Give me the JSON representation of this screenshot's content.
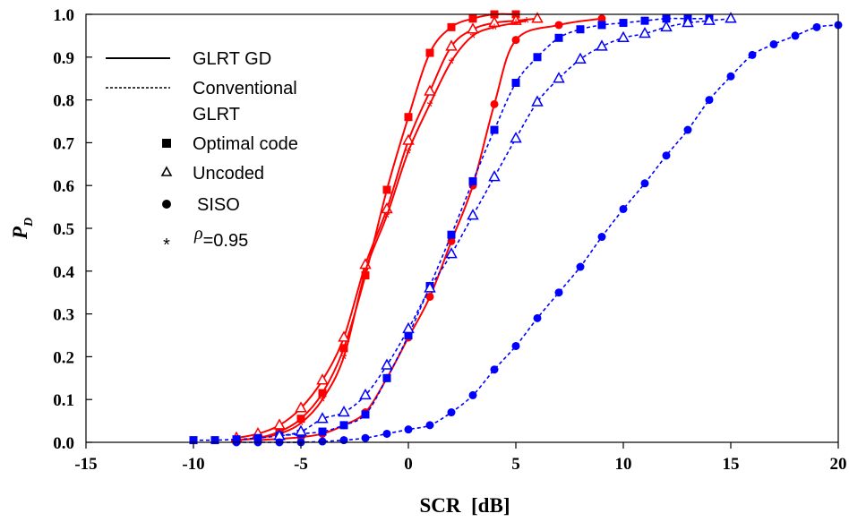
{
  "chart_data": {
    "type": "line",
    "xlabel": "SCR  [dB]",
    "ylabel": "P",
    "ylabel_sub": "D",
    "xlim": [
      -15,
      20
    ],
    "ylim": [
      0,
      1
    ],
    "x_ticks": [
      "-15",
      "-10",
      "-5",
      "0",
      "5",
      "10",
      "15",
      "20"
    ],
    "y_ticks": [
      "0.0",
      "0.1",
      "0.2",
      "0.3",
      "0.4",
      "0.5",
      "0.6",
      "0.7",
      "0.8",
      "0.9",
      "1.0"
    ],
    "grid": false,
    "legend_position": "top-left",
    "legend": {
      "line_items": [
        {
          "label": "GLRT GD",
          "style": "solid"
        },
        {
          "label": "Conventional",
          "style": "dashed"
        },
        {
          "label": "GLRT",
          "style": "none"
        }
      ],
      "marker_items": [
        {
          "label": "Optimal code",
          "marker": "square"
        },
        {
          "label": "Uncoded",
          "marker": "triangle"
        },
        {
          "label": "SISO",
          "marker": "circle"
        },
        {
          "label": "=0.95",
          "marker": "star",
          "symbol": "ρ"
        }
      ]
    },
    "colors": {
      "glrt_gd": "#ff0000",
      "conventional": "#0000ff"
    },
    "series": [
      {
        "name": "GLRT GD, Optimal code",
        "color": "#ff0000",
        "dash": false,
        "marker": "square",
        "x": [
          -8,
          -7,
          -6,
          -5,
          -4,
          -3,
          -2,
          -1,
          0,
          1,
          2,
          3,
          4,
          5
        ],
        "y": [
          0.005,
          0.01,
          0.025,
          0.055,
          0.115,
          0.22,
          0.39,
          0.59,
          0.76,
          0.91,
          0.97,
          0.99,
          1.0,
          1.0
        ]
      },
      {
        "name": "GLRT GD, Uncoded",
        "color": "#ff0000",
        "dash": false,
        "marker": "triangle",
        "x": [
          -8,
          -7,
          -6,
          -5,
          -4,
          -3,
          -2,
          -1,
          0,
          1,
          2,
          3,
          4,
          5,
          6
        ],
        "y": [
          0.01,
          0.02,
          0.04,
          0.08,
          0.145,
          0.245,
          0.415,
          0.545,
          0.705,
          0.82,
          0.925,
          0.965,
          0.98,
          0.985,
          0.99
        ]
      },
      {
        "name": "GLRT GD, SISO",
        "color": "#ff0000",
        "dash": false,
        "marker": "circle",
        "x": [
          -7,
          -6,
          -5,
          -4,
          -3,
          -2,
          -1,
          0,
          1,
          2,
          3,
          4,
          5,
          7,
          9
        ],
        "y": [
          0.005,
          0.008,
          0.012,
          0.02,
          0.04,
          0.07,
          0.15,
          0.245,
          0.34,
          0.47,
          0.6,
          0.79,
          0.94,
          0.975,
          0.99
        ]
      },
      {
        "name": "GLRT GD, ρ=0.95",
        "color": "#ff0000",
        "dash": false,
        "marker": "star",
        "x": [
          -8,
          -7,
          -6,
          -5,
          -4,
          -3,
          -2,
          -1,
          0,
          1,
          2,
          3,
          4,
          5,
          5.5
        ],
        "y": [
          0.005,
          0.01,
          0.02,
          0.045,
          0.1,
          0.2,
          0.4,
          0.53,
          0.68,
          0.79,
          0.89,
          0.95,
          0.97,
          0.98,
          0.985
        ]
      },
      {
        "name": "Conventional GLRT, Optimal code",
        "color": "#0000ff",
        "dash": true,
        "marker": "square",
        "x": [
          -10,
          -9,
          -8,
          -7,
          -6,
          -5,
          -4,
          -3,
          -2,
          -1,
          0,
          1,
          2,
          3,
          4,
          5,
          6,
          7,
          8,
          9,
          10,
          11,
          12,
          13,
          14
        ],
        "y": [
          0.005,
          0.005,
          0.007,
          0.01,
          0.015,
          0.02,
          0.025,
          0.04,
          0.065,
          0.15,
          0.25,
          0.365,
          0.485,
          0.61,
          0.73,
          0.84,
          0.9,
          0.945,
          0.965,
          0.975,
          0.98,
          0.985,
          0.99,
          0.99,
          0.99
        ]
      },
      {
        "name": "Conventional GLRT, Uncoded",
        "color": "#0000ff",
        "dash": true,
        "marker": "triangle",
        "x": [
          -6,
          -5,
          -4,
          -3,
          -2,
          -1,
          0,
          1,
          2,
          3,
          4,
          5,
          6,
          7,
          8,
          9,
          10,
          11,
          12,
          13,
          14,
          15
        ],
        "y": [
          0.015,
          0.025,
          0.055,
          0.07,
          0.11,
          0.18,
          0.265,
          0.36,
          0.44,
          0.53,
          0.62,
          0.71,
          0.795,
          0.85,
          0.895,
          0.925,
          0.945,
          0.955,
          0.97,
          0.98,
          0.985,
          0.99
        ]
      },
      {
        "name": "Conventional GLRT, SISO",
        "color": "#0000ff",
        "dash": true,
        "marker": "circle",
        "x": [
          -8,
          -7,
          -6,
          -5,
          -4,
          -3,
          -2,
          -1,
          0,
          1,
          2,
          3,
          4,
          5,
          6,
          7,
          8,
          9,
          10,
          11,
          12,
          13,
          14,
          15,
          16,
          17,
          18,
          19,
          20
        ],
        "y": [
          0.0,
          0.0,
          0.0,
          0.0,
          0.002,
          0.005,
          0.01,
          0.02,
          0.03,
          0.04,
          0.07,
          0.11,
          0.17,
          0.225,
          0.29,
          0.35,
          0.41,
          0.48,
          0.545,
          0.605,
          0.67,
          0.73,
          0.8,
          0.855,
          0.905,
          0.93,
          0.95,
          0.97,
          0.975
        ]
      }
    ]
  }
}
